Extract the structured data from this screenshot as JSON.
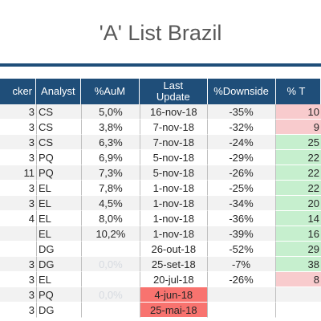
{
  "title": "'A' List Brazil",
  "colors": {
    "header_bg": "#1f4e79",
    "positive": "#c6efce",
    "negative": "#f8cbcd",
    "stale_date": "#f8736f"
  },
  "columns": {
    "ticker": "cker",
    "analyst": "Analyst",
    "aum": "%AuM",
    "last_update_1": "Last",
    "last_update_2": "Update",
    "downside": "%Downside",
    "return": "% T"
  },
  "rows": [
    {
      "ticker": "3",
      "analyst": "CS",
      "aum": "5,0%",
      "date": "16-nov-18",
      "down": "-35%",
      "ret": "10"
    },
    {
      "ticker": "3",
      "analyst": "CS",
      "aum": "3,8%",
      "date": "7-nov-18",
      "down": "-32%",
      "ret": "9"
    },
    {
      "ticker": "3",
      "analyst": "CS",
      "aum": "6,3%",
      "date": "7-nov-18",
      "down": "-24%",
      "ret": "25"
    },
    {
      "ticker": "3",
      "analyst": "PQ",
      "aum": "6,9%",
      "date": "5-nov-18",
      "down": "-29%",
      "ret": "22"
    },
    {
      "ticker": "11",
      "analyst": "PQ",
      "aum": "7,3%",
      "date": "5-nov-18",
      "down": "-26%",
      "ret": "22"
    },
    {
      "ticker": "3",
      "analyst": "EL",
      "aum": "7,8%",
      "date": "1-nov-18",
      "down": "-25%",
      "ret": "22"
    },
    {
      "ticker": "3",
      "analyst": "EL",
      "aum": "4,5%",
      "date": "1-nov-18",
      "down": "-34%",
      "ret": "20"
    },
    {
      "ticker": "4",
      "analyst": "EL",
      "aum": "8,0%",
      "date": "1-nov-18",
      "down": "-36%",
      "ret": "14"
    },
    {
      "ticker": "",
      "analyst": "EL",
      "aum": "10,2%",
      "date": "1-nov-18",
      "down": "-39%",
      "ret": "16"
    },
    {
      "ticker": "",
      "analyst": "DG",
      "aum": "",
      "date": "26-out-18",
      "down": "-52%",
      "ret": "29"
    },
    {
      "ticker": "3",
      "analyst": "DG",
      "aum": "0,0%",
      "date": "25-set-18",
      "down": "-7%",
      "ret": "38"
    },
    {
      "ticker": "3",
      "analyst": "EL",
      "aum": "",
      "date": "20-jul-18",
      "down": "-26%",
      "ret": "8"
    },
    {
      "ticker": "3",
      "analyst": "PQ",
      "aum": "0,0%",
      "date": "4-jun-18",
      "down": "",
      "ret": ""
    },
    {
      "ticker": "3",
      "analyst": "DG",
      "aum": "",
      "date": "25-mai-18",
      "down": "",
      "ret": ""
    }
  ]
}
